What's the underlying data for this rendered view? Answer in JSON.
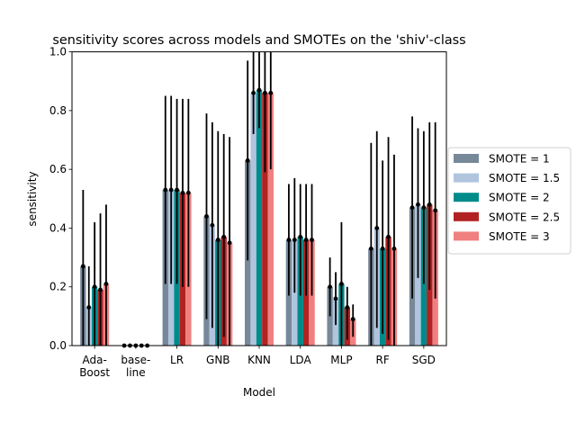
{
  "chart_data": {
    "type": "bar",
    "title": "sensitivity scores across models and SMOTEs on the 'shiv'-class",
    "xlabel": "Model",
    "ylabel": "sensitivity",
    "ylim": [
      0,
      1.0
    ],
    "yticks": [
      "0.0",
      "0.2",
      "0.4",
      "0.6",
      "0.8",
      "1.0"
    ],
    "grid": false,
    "legend_position": "right",
    "categories": [
      [
        "Ada-",
        "Boost"
      ],
      [
        "base-",
        "line"
      ],
      [
        "LR"
      ],
      [
        "GNB"
      ],
      [
        "KNN"
      ],
      [
        "LDA"
      ],
      [
        "MLP"
      ],
      [
        "RF"
      ],
      [
        "SGD"
      ]
    ],
    "series": [
      {
        "name": "SMOTE = 1",
        "color": "#778899",
        "values": [
          0.27,
          0.0,
          0.53,
          0.44,
          0.63,
          0.36,
          0.2,
          0.33,
          0.47
        ],
        "err_low": [
          0.0,
          0.0,
          0.21,
          0.09,
          0.29,
          0.17,
          0.1,
          0.0,
          0.16
        ],
        "err_high": [
          0.53,
          0.0,
          0.85,
          0.79,
          0.97,
          0.55,
          0.3,
          0.69,
          0.78
        ]
      },
      {
        "name": "SMOTE = 1.5",
        "color": "#b0c4de",
        "values": [
          0.13,
          0.0,
          0.53,
          0.41,
          0.86,
          0.36,
          0.16,
          0.4,
          0.48
        ],
        "err_low": [
          0.0,
          0.0,
          0.21,
          0.06,
          0.72,
          0.18,
          0.07,
          0.06,
          0.23
        ],
        "err_high": [
          0.27,
          0.0,
          0.85,
          0.76,
          1.0,
          0.57,
          0.25,
          0.73,
          0.74
        ]
      },
      {
        "name": "SMOTE = 2",
        "color": "#008b8b",
        "values": [
          0.2,
          0.0,
          0.53,
          0.36,
          0.87,
          0.37,
          0.21,
          0.33,
          0.47
        ],
        "err_low": [
          0.0,
          0.0,
          0.21,
          0.0,
          0.74,
          0.17,
          0.0,
          0.04,
          0.21
        ],
        "err_high": [
          0.42,
          0.0,
          0.84,
          0.73,
          1.0,
          0.55,
          0.42,
          0.63,
          0.73
        ]
      },
      {
        "name": "SMOTE = 2.5",
        "color": "#b22222",
        "values": [
          0.19,
          0.0,
          0.52,
          0.37,
          0.86,
          0.36,
          0.13,
          0.37,
          0.48
        ],
        "err_low": [
          0.0,
          0.0,
          0.2,
          0.03,
          0.59,
          0.17,
          0.02,
          0.02,
          0.19
        ],
        "err_high": [
          0.45,
          0.0,
          0.84,
          0.72,
          1.0,
          0.55,
          0.2,
          0.71,
          0.76
        ]
      },
      {
        "name": "SMOTE = 3",
        "color": "#f08080",
        "values": [
          0.21,
          0.0,
          0.52,
          0.35,
          0.86,
          0.36,
          0.09,
          0.33,
          0.46
        ],
        "err_low": [
          0.0,
          0.0,
          0.2,
          0.0,
          0.6,
          0.17,
          0.03,
          0.0,
          0.16
        ],
        "err_high": [
          0.48,
          0.0,
          0.84,
          0.71,
          1.0,
          0.55,
          0.14,
          0.65,
          0.76
        ]
      }
    ]
  }
}
